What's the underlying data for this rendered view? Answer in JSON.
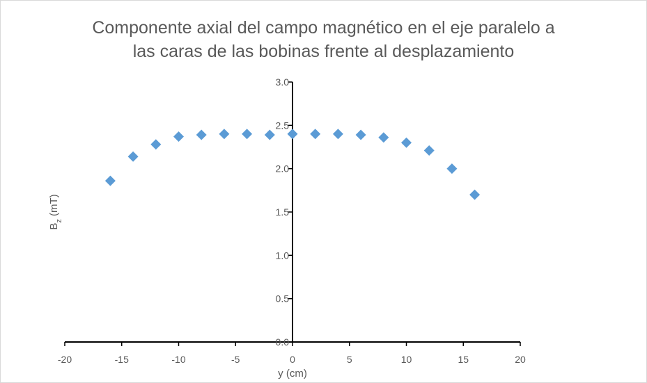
{
  "chart_data": {
    "type": "scatter",
    "title_lines": [
      "Componente axial del campo magnético en el eje paralelo a",
      "las caras de las bobinas frente al desplazamiento"
    ],
    "xlabel": "y (cm)",
    "ylabel_main": "B",
    "ylabel_sub": "z",
    "ylabel_rest": " (mT)",
    "xlim": [
      -20,
      20
    ],
    "ylim": [
      0,
      3
    ],
    "x_ticks": [
      -20,
      -15,
      -10,
      -5,
      0,
      5,
      10,
      15,
      20
    ],
    "y_ticks": [
      "0.0",
      "0.5",
      "1.0",
      "1.5",
      "2.0",
      "2.5",
      "3.0"
    ],
    "grid": false,
    "legend": "none",
    "marker": "diamond",
    "color": "#5B9BD5",
    "x": [
      -16,
      -14,
      -12,
      -10,
      -8,
      -6,
      -4,
      -2,
      0,
      2,
      4,
      6,
      8,
      10,
      12,
      14,
      16
    ],
    "y": [
      1.86,
      2.14,
      2.28,
      2.37,
      2.39,
      2.4,
      2.4,
      2.39,
      2.4,
      2.4,
      2.4,
      2.39,
      2.36,
      2.3,
      2.21,
      2.0,
      1.7
    ]
  }
}
